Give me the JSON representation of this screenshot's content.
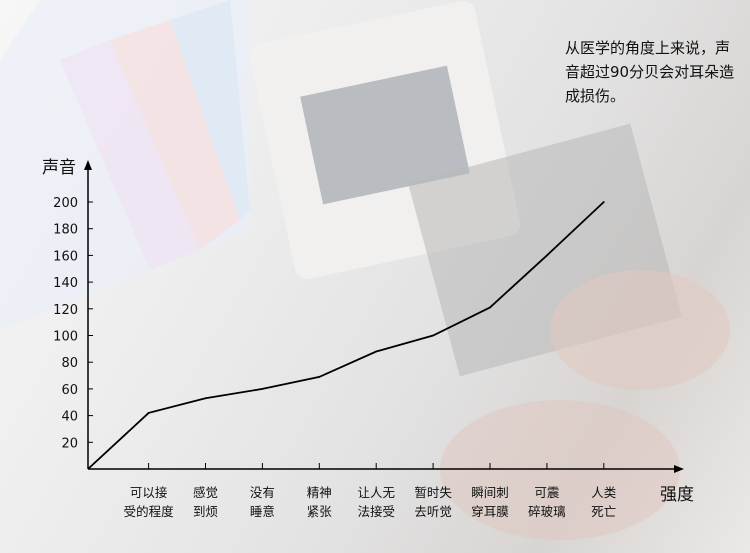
{
  "annotation": "从医学的角度上来说，声音超过90分贝会对耳朵造成损伤。",
  "chart_data": {
    "type": "line",
    "ylabel": "声音",
    "xlabel": "强度",
    "ylim": [
      0,
      200
    ],
    "yticks": [
      20,
      40,
      60,
      80,
      100,
      120,
      140,
      160,
      180,
      200
    ],
    "categories": [
      [
        "可以接",
        "受的程度"
      ],
      [
        "感觉",
        "到烦"
      ],
      [
        "没有",
        "睡意"
      ],
      [
        "精神",
        "紧张"
      ],
      [
        "让人无",
        "法接受"
      ],
      [
        "暂时失",
        "去听觉"
      ],
      [
        "瞬间刺",
        "穿耳膜"
      ],
      [
        "可震",
        "碎玻璃"
      ],
      [
        "人类",
        "死亡"
      ]
    ],
    "origin_value": 0,
    "values": [
      42,
      53,
      60,
      69,
      88,
      100,
      121,
      160,
      200
    ],
    "line_color": "#000000",
    "grid": false
  }
}
